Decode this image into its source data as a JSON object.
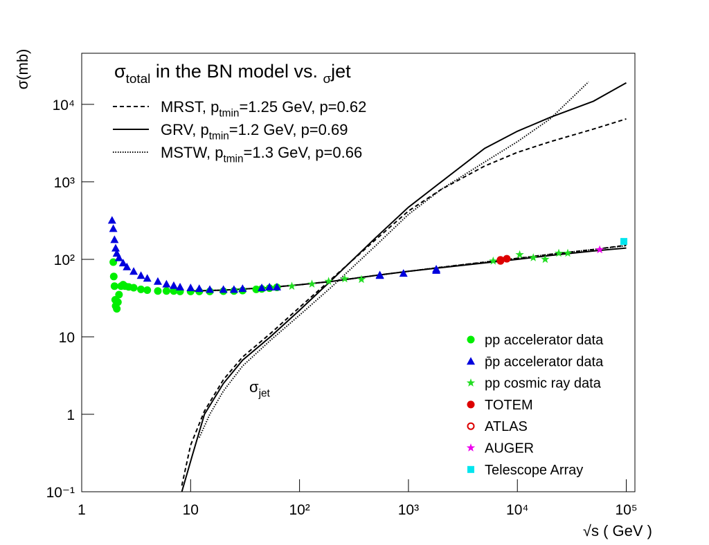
{
  "chart_data": {
    "type": "line",
    "title": [
      "σ",
      "total",
      " in the BN model vs. ",
      "σ",
      "jet"
    ],
    "x_label": "√s ( GeV )",
    "y_label": "σ(mb)",
    "annotation": [
      "σ",
      "jet"
    ],
    "log_x": true,
    "log_y": true,
    "xlim": [
      1,
      120000
    ],
    "ylim": [
      0.1,
      45700
    ],
    "xticks": [
      1,
      10,
      {
        "value": 100,
        "label": "10²"
      },
      {
        "value": 1000,
        "label": "10³"
      },
      {
        "value": 10000,
        "label": "10⁴"
      },
      {
        "value": 100000,
        "label": "10⁵"
      }
    ],
    "yticks": [
      {
        "value": 0.1,
        "label": "10⁻¹"
      },
      1,
      10,
      {
        "value": 100,
        "label": "10²"
      },
      {
        "value": 1000,
        "label": "10³"
      },
      {
        "value": 10000,
        "label": "10⁴"
      }
    ],
    "models": [
      {
        "name": [
          "MRST, p",
          "tmin",
          "=1.25 GeV, p=0.62"
        ],
        "style": "dashed",
        "color": "#000000",
        "total": {
          "x": [
            10,
            20,
            50,
            100,
            200,
            500,
            1000,
            2000,
            5000,
            10000,
            20000,
            50000,
            100000
          ],
          "values": [
            39,
            40,
            43,
            47,
            52,
            62,
            70,
            79,
            92,
            103,
            116,
            134,
            152
          ]
        },
        "jet": {
          "x": [
            8.3,
            10,
            13.4,
            20,
            30,
            54,
            100,
            200,
            500,
            1000,
            2000,
            5000,
            10000,
            20000,
            50000,
            100000
          ],
          "values": [
            0.12,
            0.4,
            1.1,
            2.8,
            5.5,
            11,
            24,
            57,
            180,
            420,
            800,
            1600,
            2400,
            3300,
            4800,
            6500
          ]
        }
      },
      {
        "name": [
          "GRV, p",
          "tmin",
          "=1.2 GeV, p=0.69"
        ],
        "style": "solid",
        "color": "#000000",
        "total": {
          "x": [
            10,
            20,
            50,
            100,
            200,
            500,
            1000,
            2000,
            5000,
            10000,
            20000,
            50000,
            100000
          ],
          "values": [
            39,
            40,
            43,
            47,
            52,
            62,
            70,
            78,
            90,
            100,
            112,
            128,
            140
          ]
        },
        "jet": {
          "x": [
            8.3,
            10.4,
            13.4,
            20,
            30,
            54,
            100,
            200,
            500,
            1000,
            2000,
            5000,
            10000,
            20000,
            50000,
            100000
          ],
          "values": [
            0.1,
            0.3,
            1,
            2.5,
            5,
            10,
            22,
            55,
            190,
            470,
            1000,
            2700,
            4500,
            6800,
            11000,
            19000
          ]
        }
      },
      {
        "name": [
          "MSTW, p",
          "tmin",
          "=1.3 GeV, p=0.66"
        ],
        "style": "dotted",
        "color": "#000000",
        "total": {
          "x": [
            10,
            20,
            50,
            100,
            200,
            500,
            1000,
            2000,
            5000,
            10000,
            20000,
            50000,
            100000
          ],
          "values": [
            39,
            40,
            43,
            47,
            52,
            62,
            70,
            79,
            92,
            103,
            116,
            134,
            150
          ]
        },
        "jet": {
          "x": [
            12,
            15,
            20,
            30,
            54,
            100,
            200,
            500,
            1000,
            2000,
            5000,
            10000,
            20000,
            45000
          ],
          "values": [
            0.5,
            1,
            2,
            4.2,
            9,
            19,
            45,
            150,
            380,
            800,
            1800,
            3300,
            6500,
            19500
          ]
        }
      }
    ],
    "points": [
      {
        "name": "pp accelerator data",
        "color": "#00ee00",
        "marker": "circle",
        "x": [
          1.95,
          1.97,
          2.0,
          2.03,
          2.05,
          2.1,
          2.15,
          2.2,
          2.3,
          2.4,
          2.5,
          2.7,
          3,
          3.5,
          4,
          5,
          6,
          7,
          8,
          10,
          12,
          15,
          20,
          25,
          30,
          40,
          45,
          53,
          62
        ],
        "values": [
          92,
          60,
          45,
          30,
          25,
          23,
          28,
          35,
          45,
          47,
          45,
          44,
          43,
          41,
          40,
          39,
          39,
          39,
          38.5,
          38.5,
          38.5,
          38.5,
          38.8,
          39,
          39.5,
          41,
          41.5,
          42.5,
          43.5
        ]
      },
      {
        "name": "p̄p accelerator data",
        "color": "#0000dd",
        "marker": "triangle",
        "x": [
          1.9,
          1.95,
          2.0,
          2.05,
          2.1,
          2.2,
          2.4,
          2.6,
          3,
          3.5,
          4,
          5,
          6,
          7,
          8,
          10,
          12,
          15,
          20,
          25,
          30,
          45,
          53,
          62,
          546,
          546,
          900,
          1800,
          1800
        ],
        "values": [
          320,
          250,
          180,
          140,
          120,
          105,
          90,
          80,
          70,
          62,
          57,
          52,
          48,
          46,
          44,
          43,
          42,
          41,
          41,
          41,
          42,
          43,
          44,
          44,
          62,
          63,
          66,
          75,
          72
        ]
      },
      {
        "name": "pp cosmic ray data",
        "color": "#22dd22",
        "marker": "star",
        "x": [
          85,
          130,
          185,
          260,
          370,
          6000,
          10500,
          14000,
          18000,
          24000,
          29000
        ],
        "values": [
          45,
          48,
          52,
          56,
          55,
          95,
          115,
          105,
          100,
          120,
          120
        ]
      },
      {
        "name": "TOTEM",
        "color": "#dd0000",
        "marker": "circle",
        "x": [
          7000,
          8000
        ],
        "values": [
          98.3,
          101.7
        ]
      },
      {
        "name": "ATLAS",
        "color": "#dd0000",
        "marker": "open-circle",
        "x": [
          7000
        ],
        "values": [
          95.4
        ]
      },
      {
        "name": "AUGER",
        "color": "#ee00ee",
        "marker": "star",
        "x": [
          57000
        ],
        "values": [
          133
        ]
      },
      {
        "name": "Telescope Array",
        "color": "#00e5ee",
        "marker": "square",
        "x": [
          95000
        ],
        "values": [
          170
        ]
      }
    ]
  }
}
